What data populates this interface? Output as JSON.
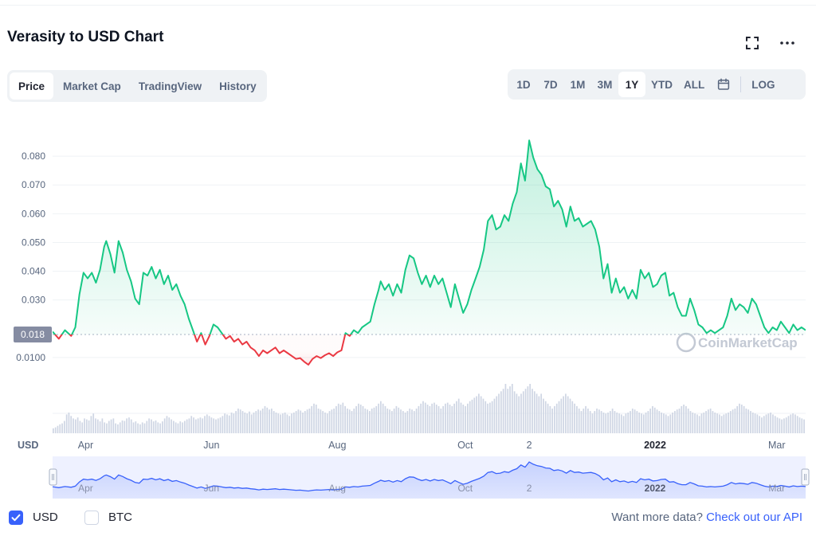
{
  "title": "Verasity to USD Chart",
  "icons": {
    "expand": "expand-icon",
    "more": "more-horizontal-icon",
    "calendar": "calendar-icon",
    "check": "check-icon"
  },
  "tabs": [
    {
      "label": "Price",
      "active": true
    },
    {
      "label": "Market Cap",
      "active": false
    },
    {
      "label": "TradingView",
      "active": false
    },
    {
      "label": "History",
      "active": false
    }
  ],
  "ranges": [
    {
      "label": "1D",
      "active": false
    },
    {
      "label": "7D",
      "active": false
    },
    {
      "label": "1M",
      "active": false
    },
    {
      "label": "3M",
      "active": false
    },
    {
      "label": "1Y",
      "active": true
    },
    {
      "label": "YTD",
      "active": false
    },
    {
      "label": "ALL",
      "active": false
    }
  ],
  "log_label": "LOG",
  "chart_data": {
    "type": "line",
    "ylim": [
      0,
      0.09
    ],
    "y_ticks": [
      "0.0100",
      "0.030",
      "0.040",
      "0.050",
      "0.060",
      "0.070",
      "0.080"
    ],
    "y_tick_values": [
      0.01,
      0.03,
      0.04,
      0.05,
      0.06,
      0.07,
      0.08
    ],
    "xlim": [
      0,
      365
    ],
    "x_tick_labels": [
      {
        "label": "Apr",
        "x": 16,
        "bold": false
      },
      {
        "label": "Jun",
        "x": 77,
        "bold": false
      },
      {
        "label": "Aug",
        "x": 138,
        "bold": false
      },
      {
        "label": "Oct",
        "x": 200,
        "bold": false
      },
      {
        "label": "2",
        "x": 231,
        "bold": false
      },
      {
        "label": "2022",
        "x": 292,
        "bold": true
      },
      {
        "label": "Mar",
        "x": 351,
        "bold": false
      }
    ],
    "currency_label": "USD",
    "baseline_price": 0.018,
    "baseline_label": "0.018",
    "up_color": "#16c784",
    "down_color": "#ea3943",
    "series": [
      {
        "values": [
          [
            0,
            0.019
          ],
          [
            3,
            0.0165
          ],
          [
            6,
            0.0195
          ],
          [
            9,
            0.0175
          ],
          [
            11,
            0.0205
          ],
          [
            13,
            0.032
          ],
          [
            15,
            0.0395
          ],
          [
            17,
            0.0375
          ],
          [
            19,
            0.0395
          ],
          [
            21,
            0.036
          ],
          [
            23,
            0.0405
          ],
          [
            25,
            0.0485
          ],
          [
            26,
            0.0505
          ],
          [
            28,
            0.046
          ],
          [
            30,
            0.0395
          ],
          [
            32,
            0.0505
          ],
          [
            34,
            0.0465
          ],
          [
            36,
            0.0405
          ],
          [
            38,
            0.0365
          ],
          [
            40,
            0.0305
          ],
          [
            42,
            0.0285
          ],
          [
            44,
            0.0395
          ],
          [
            46,
            0.0385
          ],
          [
            48,
            0.0415
          ],
          [
            50,
            0.0375
          ],
          [
            52,
            0.0405
          ],
          [
            54,
            0.0355
          ],
          [
            56,
            0.0385
          ],
          [
            58,
            0.0335
          ],
          [
            60,
            0.0355
          ],
          [
            62,
            0.0315
          ],
          [
            64,
            0.0285
          ],
          [
            66,
            0.0235
          ],
          [
            68,
            0.0195
          ],
          [
            70,
            0.0155
          ],
          [
            72,
            0.0185
          ],
          [
            74,
            0.0145
          ],
          [
            76,
            0.0175
          ],
          [
            78,
            0.0215
          ],
          [
            80,
            0.0205
          ],
          [
            82,
            0.0185
          ],
          [
            84,
            0.0165
          ],
          [
            86,
            0.0175
          ],
          [
            88,
            0.0155
          ],
          [
            90,
            0.0165
          ],
          [
            92,
            0.0145
          ],
          [
            94,
            0.0155
          ],
          [
            96,
            0.0135
          ],
          [
            98,
            0.0125
          ],
          [
            100,
            0.0105
          ],
          [
            102,
            0.0125
          ],
          [
            104,
            0.0115
          ],
          [
            106,
            0.0125
          ],
          [
            108,
            0.0135
          ],
          [
            110,
            0.0115
          ],
          [
            112,
            0.0125
          ],
          [
            114,
            0.0115
          ],
          [
            116,
            0.0105
          ],
          [
            118,
            0.0095
          ],
          [
            120,
            0.0098
          ],
          [
            122,
            0.0085
          ],
          [
            124,
            0.0075
          ],
          [
            126,
            0.0095
          ],
          [
            128,
            0.0105
          ],
          [
            130,
            0.0098
          ],
          [
            132,
            0.0108
          ],
          [
            134,
            0.0115
          ],
          [
            136,
            0.0105
          ],
          [
            138,
            0.0118
          ],
          [
            140,
            0.0125
          ],
          [
            142,
            0.0185
          ],
          [
            144,
            0.0175
          ],
          [
            146,
            0.0195
          ],
          [
            148,
            0.0185
          ],
          [
            150,
            0.0205
          ],
          [
            152,
            0.0215
          ],
          [
            154,
            0.0225
          ],
          [
            156,
            0.0285
          ],
          [
            158,
            0.0335
          ],
          [
            159,
            0.0365
          ],
          [
            161,
            0.0335
          ],
          [
            163,
            0.0355
          ],
          [
            165,
            0.0315
          ],
          [
            167,
            0.0355
          ],
          [
            169,
            0.0325
          ],
          [
            171,
            0.0405
          ],
          [
            173,
            0.0455
          ],
          [
            175,
            0.0445
          ],
          [
            177,
            0.0395
          ],
          [
            179,
            0.0355
          ],
          [
            181,
            0.0385
          ],
          [
            183,
            0.0345
          ],
          [
            185,
            0.0385
          ],
          [
            187,
            0.0355
          ],
          [
            189,
            0.0375
          ],
          [
            191,
            0.0325
          ],
          [
            193,
            0.0275
          ],
          [
            195,
            0.0355
          ],
          [
            197,
            0.0305
          ],
          [
            199,
            0.0255
          ],
          [
            201,
            0.0285
          ],
          [
            203,
            0.0335
          ],
          [
            205,
            0.0375
          ],
          [
            207,
            0.0415
          ],
          [
            209,
            0.0475
          ],
          [
            211,
            0.0575
          ],
          [
            213,
            0.0595
          ],
          [
            215,
            0.0545
          ],
          [
            217,
            0.0555
          ],
          [
            219,
            0.0595
          ],
          [
            221,
            0.0575
          ],
          [
            223,
            0.0635
          ],
          [
            225,
            0.0675
          ],
          [
            227,
            0.0775
          ],
          [
            229,
            0.0715
          ],
          [
            231,
            0.0855
          ],
          [
            233,
            0.0795
          ],
          [
            235,
            0.0755
          ],
          [
            237,
            0.0735
          ],
          [
            239,
            0.0695
          ],
          [
            241,
            0.0685
          ],
          [
            243,
            0.0625
          ],
          [
            245,
            0.0645
          ],
          [
            247,
            0.0615
          ],
          [
            249,
            0.0555
          ],
          [
            251,
            0.0625
          ],
          [
            253,
            0.0575
          ],
          [
            255,
            0.0585
          ],
          [
            257,
            0.0555
          ],
          [
            259,
            0.0565
          ],
          [
            261,
            0.0575
          ],
          [
            263,
            0.0545
          ],
          [
            265,
            0.0485
          ],
          [
            267,
            0.0375
          ],
          [
            269,
            0.0425
          ],
          [
            271,
            0.0325
          ],
          [
            273,
            0.0375
          ],
          [
            275,
            0.0325
          ],
          [
            277,
            0.0345
          ],
          [
            279,
            0.0305
          ],
          [
            281,
            0.0335
          ],
          [
            283,
            0.0305
          ],
          [
            285,
            0.0405
          ],
          [
            287,
            0.0375
          ],
          [
            289,
            0.0395
          ],
          [
            291,
            0.0345
          ],
          [
            293,
            0.0355
          ],
          [
            295,
            0.0385
          ],
          [
            297,
            0.0395
          ],
          [
            299,
            0.0315
          ],
          [
            301,
            0.0325
          ],
          [
            303,
            0.0275
          ],
          [
            305,
            0.0245
          ],
          [
            307,
            0.0245
          ],
          [
            309,
            0.0305
          ],
          [
            311,
            0.0265
          ],
          [
            313,
            0.0215
          ],
          [
            315,
            0.0205
          ],
          [
            317,
            0.0185
          ],
          [
            319,
            0.0195
          ],
          [
            321,
            0.0185
          ],
          [
            323,
            0.0195
          ],
          [
            325,
            0.0205
          ],
          [
            327,
            0.0245
          ],
          [
            329,
            0.0305
          ],
          [
            331,
            0.0265
          ],
          [
            333,
            0.0285
          ],
          [
            335,
            0.0275
          ],
          [
            337,
            0.0255
          ],
          [
            339,
            0.0305
          ],
          [
            341,
            0.0285
          ],
          [
            343,
            0.0245
          ],
          [
            345,
            0.0205
          ],
          [
            347,
            0.0185
          ],
          [
            349,
            0.0205
          ],
          [
            351,
            0.0195
          ],
          [
            353,
            0.0225
          ],
          [
            355,
            0.0205
          ],
          [
            357,
            0.0185
          ],
          [
            359,
            0.0215
          ],
          [
            361,
            0.0195
          ],
          [
            363,
            0.0205
          ],
          [
            365,
            0.0195
          ]
        ]
      }
    ],
    "volume": {
      "values": [
        0.1,
        0.12,
        0.15,
        0.18,
        0.2,
        0.25,
        0.38,
        0.42,
        0.35,
        0.3,
        0.28,
        0.32,
        0.25,
        0.22,
        0.3,
        0.28,
        0.26,
        0.35,
        0.4,
        0.3,
        0.28,
        0.24,
        0.3,
        0.22,
        0.2,
        0.25,
        0.28,
        0.3,
        0.2,
        0.18,
        0.22,
        0.26,
        0.25,
        0.3,
        0.32,
        0.28,
        0.22,
        0.24,
        0.2,
        0.18,
        0.22,
        0.2,
        0.25,
        0.3,
        0.28,
        0.24,
        0.26,
        0.22,
        0.2,
        0.24,
        0.3,
        0.35,
        0.32,
        0.28,
        0.25,
        0.22,
        0.2,
        0.24,
        0.22,
        0.25,
        0.28,
        0.3,
        0.35,
        0.32,
        0.28,
        0.3,
        0.32,
        0.3,
        0.35,
        0.38,
        0.35,
        0.32,
        0.3,
        0.28,
        0.3,
        0.32,
        0.35,
        0.4,
        0.38,
        0.36,
        0.42,
        0.4,
        0.45,
        0.5,
        0.48,
        0.45,
        0.42,
        0.4,
        0.44,
        0.38,
        0.42,
        0.45,
        0.48,
        0.46,
        0.5,
        0.55,
        0.52,
        0.48,
        0.5,
        0.45,
        0.42,
        0.4,
        0.38,
        0.4,
        0.42,
        0.38,
        0.35,
        0.4,
        0.42,
        0.45,
        0.48,
        0.46,
        0.42,
        0.45,
        0.48,
        0.5,
        0.55,
        0.6,
        0.58,
        0.5,
        0.48,
        0.45,
        0.42,
        0.4,
        0.45,
        0.48,
        0.5,
        0.55,
        0.6,
        0.58,
        0.62,
        0.55,
        0.5,
        0.48,
        0.45,
        0.5,
        0.55,
        0.6,
        0.58,
        0.55,
        0.5,
        0.48,
        0.45,
        0.5,
        0.52,
        0.55,
        0.6,
        0.65,
        0.6,
        0.55,
        0.5,
        0.48,
        0.45,
        0.5,
        0.55,
        0.52,
        0.48,
        0.45,
        0.42,
        0.45,
        0.5,
        0.48,
        0.45,
        0.5,
        0.55,
        0.6,
        0.65,
        0.62,
        0.58,
        0.55,
        0.6,
        0.62,
        0.58,
        0.55,
        0.5,
        0.55,
        0.6,
        0.62,
        0.58,
        0.55,
        0.6,
        0.65,
        0.7,
        0.62,
        0.58,
        0.55,
        0.6,
        0.65,
        0.68,
        0.72,
        0.75,
        0.8,
        0.75,
        0.7,
        0.65,
        0.6,
        0.62,
        0.65,
        0.7,
        0.75,
        0.8,
        0.85,
        0.9,
        1.0,
        0.9,
        0.95,
        1.0,
        0.85,
        0.8,
        0.75,
        0.8,
        0.85,
        0.9,
        0.95,
        1.0,
        0.9,
        0.85,
        0.8,
        0.75,
        0.8,
        0.7,
        0.65,
        0.6,
        0.55,
        0.5,
        0.55,
        0.6,
        0.65,
        0.7,
        0.75,
        0.8,
        0.75,
        0.7,
        0.65,
        0.6,
        0.55,
        0.5,
        0.45,
        0.5,
        0.55,
        0.5,
        0.45,
        0.4,
        0.45,
        0.5,
        0.48,
        0.45,
        0.42,
        0.4,
        0.42,
        0.45,
        0.5,
        0.45,
        0.42,
        0.4,
        0.38,
        0.35,
        0.4,
        0.42,
        0.45,
        0.5,
        0.48,
        0.45,
        0.42,
        0.4,
        0.38,
        0.42,
        0.45,
        0.5,
        0.55,
        0.52,
        0.48,
        0.45,
        0.42,
        0.4,
        0.38,
        0.35,
        0.38,
        0.42,
        0.45,
        0.48,
        0.5,
        0.55,
        0.58,
        0.55,
        0.5,
        0.45,
        0.42,
        0.4,
        0.38,
        0.35,
        0.4,
        0.42,
        0.45,
        0.48,
        0.5,
        0.45,
        0.42,
        0.4,
        0.38,
        0.35,
        0.38,
        0.4,
        0.42,
        0.45,
        0.48,
        0.5,
        0.55,
        0.6,
        0.58,
        0.55,
        0.5,
        0.48,
        0.45,
        0.42,
        0.4,
        0.38,
        0.35,
        0.32,
        0.35,
        0.38,
        0.4,
        0.42,
        0.38,
        0.35,
        0.32,
        0.3,
        0.28,
        0.3,
        0.32,
        0.35,
        0.38,
        0.4,
        0.38,
        0.35,
        0.32,
        0.3,
        0.28
      ]
    },
    "watermark": "CoinMarketCap"
  },
  "footer": {
    "usd_label": "USD",
    "btc_label": "BTC",
    "usd_checked": true,
    "btc_checked": false,
    "more_text": "Want more data?",
    "api_link": "Check out our API"
  }
}
